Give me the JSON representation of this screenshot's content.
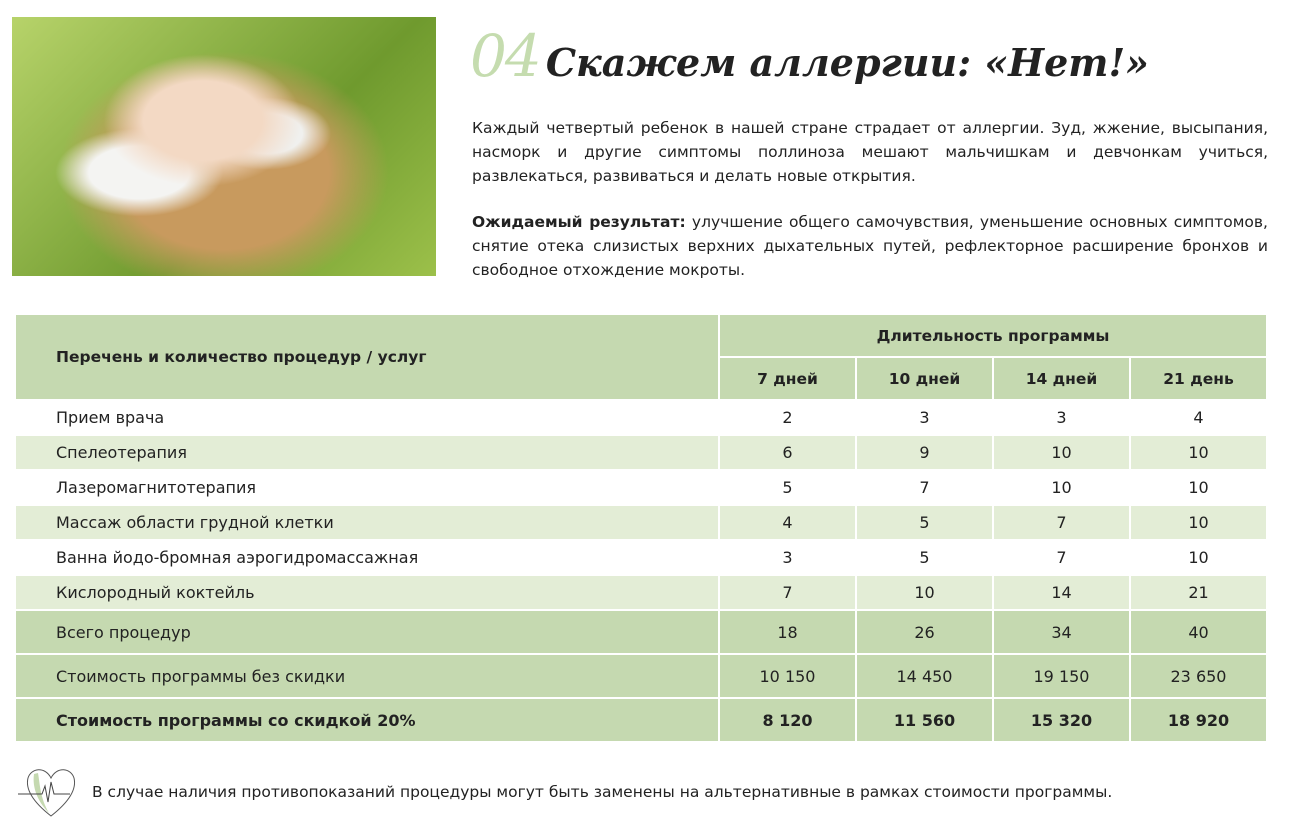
{
  "section": {
    "number": "04",
    "title": "Скажем аллергии: «Нет!»"
  },
  "intro": "Каждый четвертый ребенок в нашей стране страдает от аллергии. Зуд, жжение, высыпания, насморк и другие симптомы поллиноза мешают мальчишкам и девчонкам учиться, развлекаться, развиваться и делать новые открытия.",
  "result": {
    "label": "Ожидаемый результат:",
    "text": " улучшение общего самочувствия, уменьшение основных симптомов, снятие отека слизистых верхних дыхательных путей, рефлекторное расширение бронхов и свободное отхождение мокроты."
  },
  "table": {
    "col_header": "Перечень и количество процедур / услуг",
    "duration_header": "Длительность программы",
    "durations": [
      "7 дней",
      "10 дней",
      "14 дней",
      "21 день"
    ],
    "rows": [
      {
        "name": "Прием врача",
        "values": [
          "2",
          "3",
          "3",
          "4"
        ]
      },
      {
        "name": "Спелеотерапия",
        "values": [
          "6",
          "9",
          "10",
          "10"
        ]
      },
      {
        "name": "Лазеромагнитотерапия",
        "values": [
          "5",
          "7",
          "10",
          "10"
        ]
      },
      {
        "name": "Массаж области грудной клетки",
        "values": [
          "4",
          "5",
          "7",
          "10"
        ]
      },
      {
        "name": "Ванна йодо-бромная аэрогидромассажная",
        "values": [
          "3",
          "5",
          "7",
          "10"
        ]
      },
      {
        "name": "Кислородный коктейль",
        "values": [
          "7",
          "10",
          "14",
          "21"
        ]
      }
    ],
    "total": {
      "name": "Всего процедур",
      "values": [
        "18",
        "26",
        "34",
        "40"
      ]
    },
    "price": {
      "name": "Стоимость программы без скидки",
      "values": [
        "10 150",
        "14 450",
        "19 150",
        "23 650"
      ]
    },
    "discount": {
      "name": "Стоимость программы со скидкой 20%",
      "values": [
        "8 120",
        "11 560",
        "15 320",
        "18 920"
      ]
    }
  },
  "footnote": "В случае наличия противопоказаний процедуры могут быть заменены на альтернативные в рамках стоимости программы.",
  "colors": {
    "accent": "#c5d9b0",
    "row_light": "#e3edd6"
  }
}
